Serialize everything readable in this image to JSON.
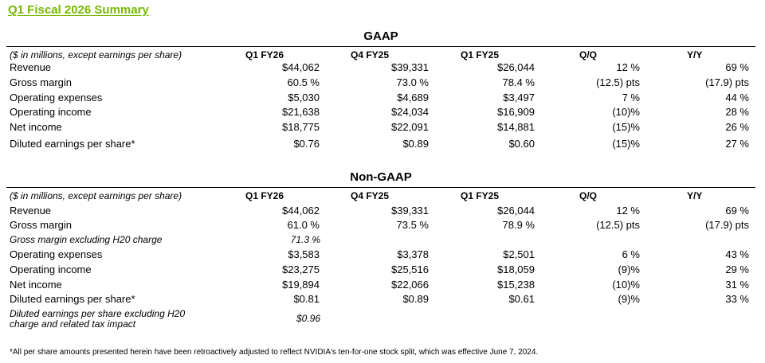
{
  "title": "Q1 Fiscal 2026 Summary",
  "gaap": {
    "heading": "GAAP",
    "header": {
      "label": "($ in millions, except earnings per share)",
      "cols": [
        "Q1 FY26",
        "Q4 FY25",
        "Q1 FY25",
        "Q/Q",
        "Y/Y"
      ]
    },
    "rows": [
      {
        "label": "Revenue",
        "v": [
          "$44,062",
          "$39,331",
          "$26,044",
          "12 %",
          "69 %"
        ]
      },
      {
        "label": "Gross margin",
        "v": [
          "60.5 %",
          "73.0 %",
          "78.4 %",
          "(12.5) pts",
          "(17.9) pts"
        ]
      },
      {
        "label": "Operating expenses",
        "v": [
          "$5,030",
          "$4,689",
          "$3,497",
          "7 %",
          "44 %"
        ]
      },
      {
        "label": "Operating income",
        "v": [
          "$21,638",
          "$24,034",
          "$16,909",
          "(10)%",
          "28 %"
        ]
      },
      {
        "label": "Net income",
        "v": [
          "$18,775",
          "$22,091",
          "$14,881",
          "(15)%",
          "26 %"
        ]
      },
      {
        "label": "Diluted earnings per share*",
        "v": [
          "$0.76",
          "$0.89",
          "$0.60",
          "(15)%",
          "27 %"
        ]
      }
    ]
  },
  "nongaap": {
    "heading": "Non-GAAP",
    "header": {
      "label": "($ in millions, except earnings per share)",
      "cols": [
        "Q1 FY26",
        "Q4 FY25",
        "Q1 FY25",
        "Q/Q",
        "Y/Y"
      ]
    },
    "rows": [
      {
        "label": "Revenue",
        "v": [
          "$44,062",
          "$39,331",
          "$26,044",
          "12 %",
          "69 %"
        ]
      },
      {
        "label": "Gross margin",
        "v": [
          "61.0 %",
          "73.5 %",
          "78.9 %",
          "(12.5) pts",
          "(17.9) pts"
        ]
      },
      {
        "label": "Gross margin excluding H20 charge",
        "v": [
          "71.3 %"
        ]
      },
      {
        "label": "Operating expenses",
        "v": [
          "$3,583",
          "$3,378",
          "$2,501",
          "6 %",
          "43 %"
        ]
      },
      {
        "label": "Operating income",
        "v": [
          "$23,275",
          "$25,516",
          "$18,059",
          "(9)%",
          "29 %"
        ]
      },
      {
        "label": "Net income",
        "v": [
          "$19,894",
          "$22,066",
          "$15,238",
          "(10)%",
          "31 %"
        ]
      },
      {
        "label": "Diluted earnings per share*",
        "v": [
          "$0.81",
          "$0.89",
          "$0.61",
          "(9)%",
          "33 %"
        ]
      },
      {
        "label_line1": "Diluted earnings per share excluding H20",
        "label_line2": "charge and related tax impact",
        "v": [
          "$0.96"
        ]
      }
    ]
  },
  "footnote": "*All per share amounts presented herein have been retroactively adjusted to reflect NVIDIA's ten-for-one stock split, which was effective June 7, 2024."
}
